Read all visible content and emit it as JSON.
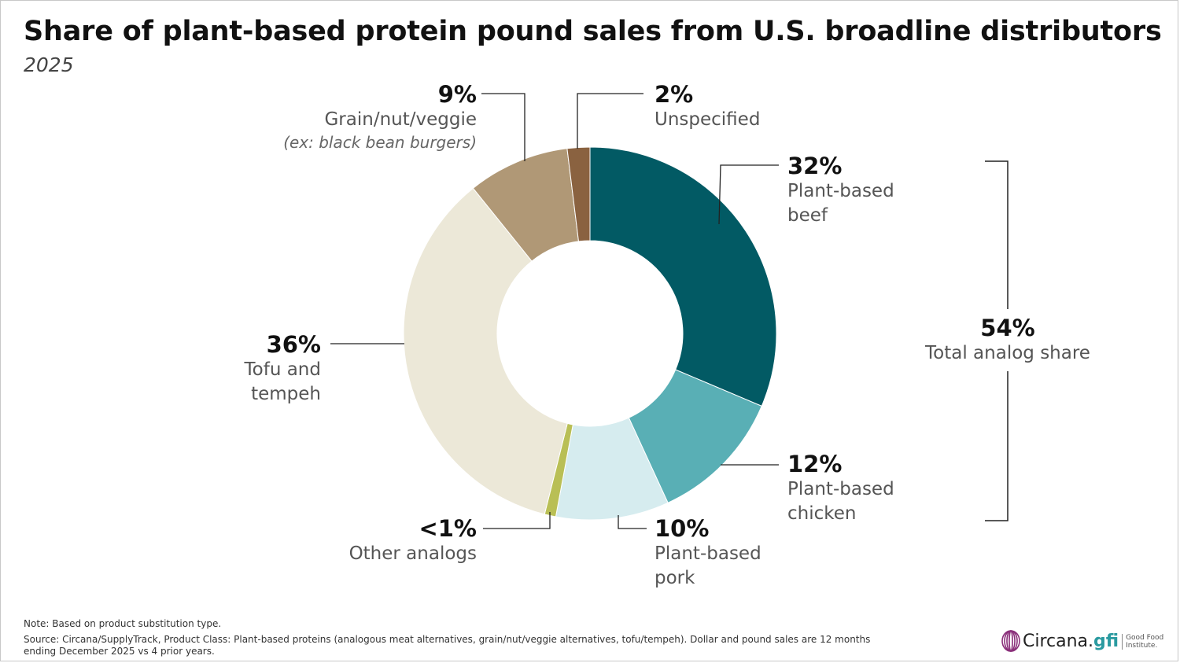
{
  "title": "Share of plant-based protein pound sales from U.S. broadline distributors",
  "subtitle": "2025",
  "chart_data": {
    "type": "pie",
    "style": "donut",
    "slices": [
      {
        "label_lines": [
          "Plant-based",
          "beef"
        ],
        "pct_label": "32%",
        "value": 32,
        "color": "#025A64"
      },
      {
        "label_lines": [
          "Plant-based",
          "chicken"
        ],
        "pct_label": "12%",
        "value": 12,
        "color": "#59AFB5"
      },
      {
        "label_lines": [
          "Plant-based",
          "pork"
        ],
        "pct_label": "10%",
        "value": 10,
        "color": "#D6ECEF"
      },
      {
        "label_lines": [
          "Other analogs"
        ],
        "pct_label": "<1%",
        "value": 1,
        "color": "#B9BF55"
      },
      {
        "label_lines": [
          "Tofu and",
          "tempeh"
        ],
        "pct_label": "36%",
        "value": 36,
        "color": "#ECE8D8"
      },
      {
        "label_lines": [
          "Grain/nut/veggie"
        ],
        "sublabel": "(ex: black bean burgers)",
        "pct_label": "9%",
        "value": 9,
        "color": "#B09876"
      },
      {
        "label_lines": [
          "Unspecified"
        ],
        "pct_label": "2%",
        "value": 2,
        "color": "#8A6240"
      }
    ],
    "bracket": {
      "pct_label": "54%",
      "label": "Total analog share"
    }
  },
  "footer": {
    "note": "Note: Based on product substitution type.",
    "source": "Source: Circana/SupplyTrack, Product Class: Plant-based proteins (analogous meat alternatives, grain/nut/veggie alternatives, tofu/tempeh). Dollar and pound sales are 12 months ending December 2025 vs 4 prior years.",
    "logos": {
      "circana": "Circana.",
      "gfi": "gfi",
      "gfi_text": [
        "Good Food",
        "Institute."
      ]
    }
  }
}
